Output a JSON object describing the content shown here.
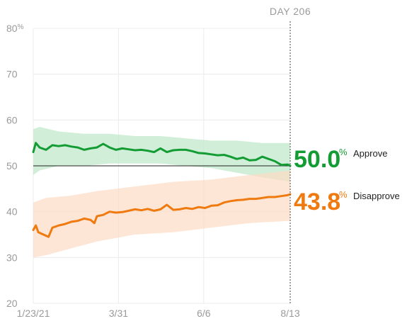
{
  "chart_data": {
    "type": "line",
    "marker_label": "DAY 206",
    "y_ticks": [
      {
        "value": 80,
        "label": "80"
      },
      {
        "value": 70,
        "label": "70"
      },
      {
        "value": 60,
        "label": "60"
      },
      {
        "value": 50,
        "label": "50"
      },
      {
        "value": 40,
        "label": "40"
      },
      {
        "value": 30,
        "label": "30"
      },
      {
        "value": 20,
        "label": "20"
      }
    ],
    "y_tick_suffix": "%",
    "ylim": [
      20,
      80
    ],
    "x_ticks": [
      {
        "day": 0,
        "label": "1/23/21"
      },
      {
        "day": 67,
        "label": "3/31"
      },
      {
        "day": 134,
        "label": "6/6"
      },
      {
        "day": 202,
        "label": "8/13"
      }
    ],
    "xlim": [
      0,
      202
    ],
    "reference_line": 50,
    "grid": true,
    "series": [
      {
        "name": "Approve",
        "color": "#149c34",
        "band_color": "#bde8c8",
        "final_value_label": "50.0",
        "unit": "%",
        "points": [
          [
            0,
            53
          ],
          [
            2,
            55
          ],
          [
            5,
            54
          ],
          [
            10,
            53.5
          ],
          [
            15,
            54.5
          ],
          [
            20,
            54.3
          ],
          [
            25,
            54.5
          ],
          [
            30,
            54.2
          ],
          [
            35,
            54.0
          ],
          [
            40,
            53.5
          ],
          [
            45,
            53.8
          ],
          [
            50,
            54
          ],
          [
            55,
            54.8
          ],
          [
            60,
            54
          ],
          [
            65,
            53.5
          ],
          [
            70,
            53.8
          ],
          [
            75,
            53.6
          ],
          [
            80,
            53.4
          ],
          [
            85,
            53.5
          ],
          [
            90,
            53.3
          ],
          [
            95,
            53
          ],
          [
            100,
            53.8
          ],
          [
            105,
            53
          ],
          [
            110,
            53.4
          ],
          [
            115,
            53.5
          ],
          [
            120,
            53.5
          ],
          [
            125,
            53.2
          ],
          [
            130,
            52.8
          ],
          [
            135,
            52.7
          ],
          [
            140,
            52.5
          ],
          [
            145,
            52.3
          ],
          [
            150,
            52.4
          ],
          [
            155,
            52.0
          ],
          [
            160,
            51.5
          ],
          [
            165,
            51.8
          ],
          [
            170,
            51.2
          ],
          [
            175,
            51.3
          ],
          [
            180,
            52.0
          ],
          [
            185,
            51.5
          ],
          [
            190,
            51.0
          ],
          [
            195,
            50.2
          ],
          [
            200,
            50.3
          ],
          [
            202,
            50.0
          ]
        ],
        "band_upper": [
          [
            0,
            58
          ],
          [
            5,
            58.5
          ],
          [
            20,
            57.5
          ],
          [
            40,
            57
          ],
          [
            60,
            57
          ],
          [
            80,
            56.5
          ],
          [
            100,
            56.5
          ],
          [
            120,
            56
          ],
          [
            140,
            55.5
          ],
          [
            160,
            55.5
          ],
          [
            180,
            55
          ],
          [
            202,
            55
          ]
        ],
        "band_lower": [
          [
            0,
            48
          ],
          [
            5,
            49
          ],
          [
            20,
            50
          ],
          [
            40,
            50
          ],
          [
            60,
            50.5
          ],
          [
            80,
            50.5
          ],
          [
            100,
            50.5
          ],
          [
            120,
            50
          ],
          [
            140,
            49.5
          ],
          [
            160,
            48.5
          ],
          [
            180,
            47.5
          ],
          [
            202,
            46.5
          ]
        ]
      },
      {
        "name": "Disapprove",
        "color": "#ef7a0f",
        "band_color": "#fddcc4",
        "final_value_label": "43.8",
        "unit": "%",
        "points": [
          [
            0,
            36
          ],
          [
            2,
            37
          ],
          [
            4,
            35.5
          ],
          [
            8,
            35
          ],
          [
            12,
            34.5
          ],
          [
            15,
            36.5
          ],
          [
            20,
            37
          ],
          [
            25,
            37.3
          ],
          [
            30,
            37.8
          ],
          [
            35,
            38
          ],
          [
            40,
            38.5
          ],
          [
            45,
            38.2
          ],
          [
            48,
            37.5
          ],
          [
            50,
            39
          ],
          [
            55,
            39.3
          ],
          [
            60,
            40
          ],
          [
            65,
            39.8
          ],
          [
            70,
            39.9
          ],
          [
            75,
            40.2
          ],
          [
            80,
            40.5
          ],
          [
            85,
            40.3
          ],
          [
            90,
            40.6
          ],
          [
            95,
            40.2
          ],
          [
            100,
            40.5
          ],
          [
            105,
            41.5
          ],
          [
            110,
            40.4
          ],
          [
            115,
            40.5
          ],
          [
            120,
            40.8
          ],
          [
            125,
            40.6
          ],
          [
            130,
            41.0
          ],
          [
            135,
            40.8
          ],
          [
            140,
            41.3
          ],
          [
            145,
            41.4
          ],
          [
            150,
            42.0
          ],
          [
            155,
            42.3
          ],
          [
            160,
            42.5
          ],
          [
            165,
            42.6
          ],
          [
            170,
            42.8
          ],
          [
            175,
            42.8
          ],
          [
            180,
            43.0
          ],
          [
            185,
            43.2
          ],
          [
            190,
            43.2
          ],
          [
            195,
            43.4
          ],
          [
            200,
            43.6
          ],
          [
            202,
            43.8
          ]
        ],
        "band_upper": [
          [
            0,
            42
          ],
          [
            10,
            43
          ],
          [
            30,
            43.5
          ],
          [
            50,
            44.5
          ],
          [
            80,
            45.5
          ],
          [
            110,
            46.5
          ],
          [
            140,
            47
          ],
          [
            170,
            48
          ],
          [
            202,
            49
          ]
        ],
        "band_lower": [
          [
            0,
            30
          ],
          [
            10,
            30.5
          ],
          [
            30,
            32
          ],
          [
            50,
            33.5
          ],
          [
            80,
            35
          ],
          [
            110,
            35.5
          ],
          [
            140,
            36.5
          ],
          [
            170,
            37.5
          ],
          [
            202,
            38
          ]
        ]
      }
    ]
  }
}
